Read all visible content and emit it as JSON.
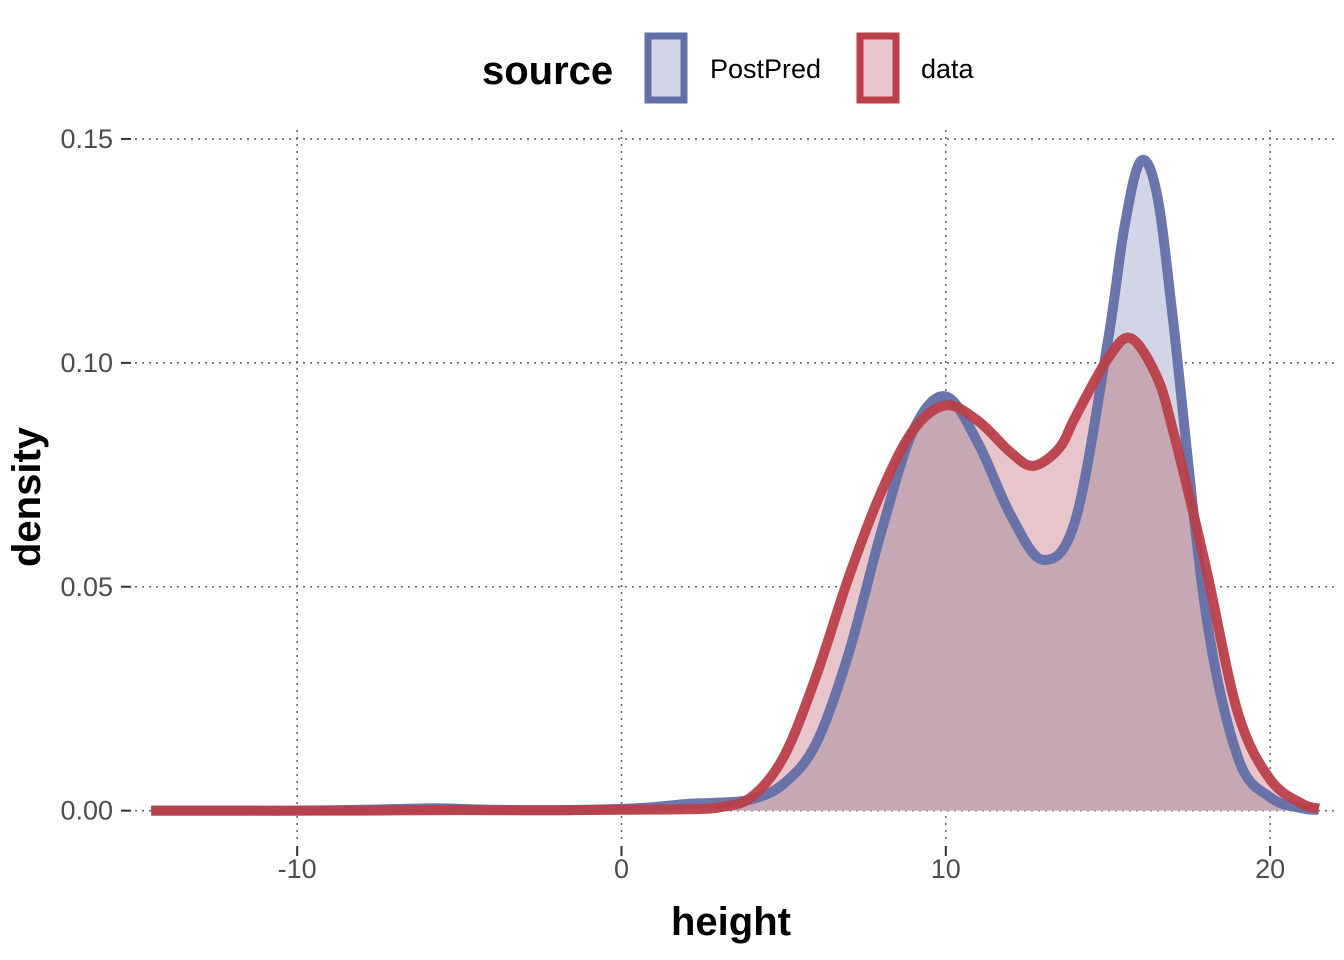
{
  "chart_data": {
    "type": "area",
    "title": "",
    "xlabel": "height",
    "ylabel": "density",
    "xlim": [
      -15,
      22
    ],
    "ylim": [
      -0.007,
      0.152
    ],
    "x_ticks": [
      -10,
      0,
      10,
      20
    ],
    "x_tick_labels": [
      "-10",
      "0",
      "10",
      "20"
    ],
    "y_ticks": [
      0.0,
      0.05,
      0.1,
      0.15
    ],
    "y_tick_labels": [
      "0.00",
      "0.05",
      "0.10",
      "0.15"
    ],
    "grid": "major, dotted",
    "legend": {
      "title": "source",
      "position": "top",
      "entries": [
        "PostPred",
        "data"
      ]
    },
    "series": [
      {
        "name": "PostPred",
        "line_color": "#626fa8",
        "fill_color": "#d1d5e5",
        "x": [
          -14.5,
          -12,
          -10,
          -8,
          -6,
          -5.5,
          -4,
          -2,
          0,
          1,
          2,
          3,
          4,
          5,
          6,
          7,
          8,
          9,
          10,
          11,
          12,
          13,
          14,
          15,
          15.5,
          16,
          16.5,
          17,
          18,
          19,
          20,
          21,
          21.5
        ],
        "values": [
          0.0,
          0.0,
          0.0,
          0.0002,
          0.0005,
          0.0005,
          0.0002,
          0.0001,
          0.0004,
          0.0008,
          0.0015,
          0.0018,
          0.0025,
          0.006,
          0.015,
          0.035,
          0.062,
          0.085,
          0.0925,
          0.082,
          0.066,
          0.056,
          0.065,
          0.105,
          0.13,
          0.145,
          0.138,
          0.11,
          0.045,
          0.012,
          0.003,
          0.0005,
          0.0002
        ]
      },
      {
        "name": "data",
        "line_color": "#bb3f49",
        "fill_color": "#e8c5cb",
        "x": [
          -14.5,
          -12,
          -10,
          -8,
          -6,
          -4,
          -2,
          0,
          2,
          3,
          4,
          5,
          6,
          7,
          8,
          9,
          10,
          11,
          12,
          12.7,
          13.5,
          14,
          15,
          15.7,
          16.5,
          17,
          18,
          19,
          20,
          21,
          21.5
        ],
        "values": [
          0.0,
          0.0,
          0.0,
          0.0,
          0.0001,
          0.0001,
          0.0001,
          0.0002,
          0.0003,
          0.0007,
          0.003,
          0.012,
          0.03,
          0.052,
          0.071,
          0.085,
          0.0905,
          0.087,
          0.08,
          0.077,
          0.081,
          0.088,
          0.101,
          0.1055,
          0.097,
          0.085,
          0.055,
          0.022,
          0.007,
          0.0015,
          0.0005
        ]
      }
    ],
    "overlap_fill_color": "#c5a8b3"
  }
}
